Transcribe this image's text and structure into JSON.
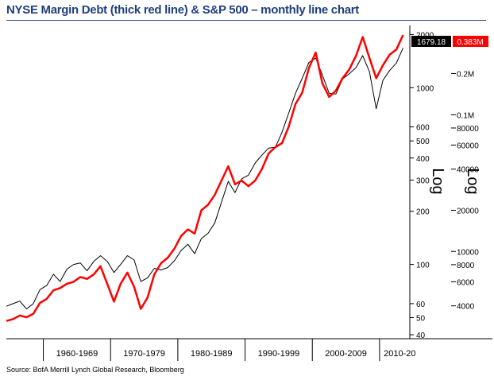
{
  "title": "NYSE Margin Debt (thick red line) & S&P 500 – monthly line chart",
  "source": "Source: BofA Merrill Lynch Global Research, Bloomberg",
  "chart_data": {
    "type": "line",
    "title": "NYSE Margin Debt (thick red line) & S&P 500 – monthly line chart",
    "x_range": [
      1954,
      2014
    ],
    "x_ticks": [
      "1960-1969",
      "1970-1979",
      "1980-1989",
      "1990-1999",
      "2000-2009",
      "2010-20"
    ],
    "x_tick_positions_years": [
      1964.5,
      1974.5,
      1984.5,
      1994.5,
      2004.5,
      2012.5
    ],
    "x_separators_years": [
      1959.5,
      1969.5,
      1979.5,
      1989.5,
      1999.5,
      2009.5
    ],
    "left_axis": {
      "label": "Log",
      "scale": "log",
      "range": [
        38,
        2250
      ],
      "ticks": [
        2000,
        1000,
        600,
        500,
        400,
        300,
        200,
        100,
        60,
        50,
        40
      ],
      "tick_labels": [
        "2000",
        "1000",
        "600",
        "500",
        "400",
        "300",
        "200",
        "100",
        "60",
        "50",
        "40"
      ]
    },
    "right_axis": {
      "label": "Log",
      "scale": "log",
      "range": [
        2300,
        450000
      ],
      "ticks": [
        200000,
        100000,
        80000,
        60000,
        40000,
        20000,
        10000,
        8000,
        6000,
        4000
      ],
      "tick_labels": [
        "0.2M",
        "0.1M",
        "80000",
        "60000",
        "40000",
        "20000",
        "10000",
        "8000",
        "6000",
        "4000"
      ]
    },
    "last_value_labels": [
      {
        "series": "S&P 500",
        "text": "1679.18",
        "color": "#000000"
      },
      {
        "series": "NYSE Margin Debt",
        "text": "0.383M",
        "color": "#ff0000"
      }
    ],
    "series": [
      {
        "name": "S&P 500",
        "axis": "left",
        "color": "#000000",
        "width": 1,
        "points": [
          [
            1954,
            58
          ],
          [
            1955,
            60
          ],
          [
            1956,
            62
          ],
          [
            1957,
            56
          ],
          [
            1958,
            60
          ],
          [
            1959,
            72
          ],
          [
            1960,
            76
          ],
          [
            1961,
            88
          ],
          [
            1962,
            80
          ],
          [
            1963,
            94
          ],
          [
            1964,
            100
          ],
          [
            1965,
            102
          ],
          [
            1966,
            92
          ],
          [
            1967,
            104
          ],
          [
            1968,
            112
          ],
          [
            1969,
            104
          ],
          [
            1970,
            90
          ],
          [
            1971,
            100
          ],
          [
            1972,
            112
          ],
          [
            1973,
            106
          ],
          [
            1974,
            80
          ],
          [
            1975,
            84
          ],
          [
            1976,
            95
          ],
          [
            1977,
            93
          ],
          [
            1978,
            96
          ],
          [
            1979,
            105
          ],
          [
            1980,
            120
          ],
          [
            1981,
            130
          ],
          [
            1982,
            115
          ],
          [
            1983,
            140
          ],
          [
            1984,
            150
          ],
          [
            1985,
            172
          ],
          [
            1986,
            225
          ],
          [
            1987,
            295
          ],
          [
            1988,
            255
          ],
          [
            1989,
            305
          ],
          [
            1990,
            320
          ],
          [
            1991,
            375
          ],
          [
            1992,
            415
          ],
          [
            1993,
            455
          ],
          [
            1994,
            460
          ],
          [
            1995,
            560
          ],
          [
            1996,
            720
          ],
          [
            1997,
            930
          ],
          [
            1998,
            1130
          ],
          [
            1999,
            1390
          ],
          [
            2000,
            1470
          ],
          [
            2001,
            1180
          ],
          [
            2002,
            930
          ],
          [
            2003,
            920
          ],
          [
            2004,
            1120
          ],
          [
            2005,
            1200
          ],
          [
            2006,
            1300
          ],
          [
            2007,
            1520
          ],
          [
            2008,
            1230
          ],
          [
            2009,
            760
          ],
          [
            2010,
            1100
          ],
          [
            2011,
            1250
          ],
          [
            2012,
            1380
          ],
          [
            2013,
            1679.18
          ]
        ]
      },
      {
        "name": "NYSE Margin Debt",
        "axis": "right",
        "color": "#ff0000",
        "width": 2.5,
        "points": [
          [
            1954,
            3100
          ],
          [
            1955,
            3200
          ],
          [
            1956,
            3400
          ],
          [
            1957,
            3300
          ],
          [
            1958,
            3500
          ],
          [
            1959,
            4200
          ],
          [
            1960,
            4500
          ],
          [
            1961,
            5200
          ],
          [
            1962,
            5400
          ],
          [
            1963,
            5800
          ],
          [
            1964,
            6000
          ],
          [
            1965,
            6500
          ],
          [
            1966,
            6300
          ],
          [
            1967,
            6800
          ],
          [
            1968,
            7800
          ],
          [
            1969,
            5800
          ],
          [
            1970,
            4300
          ],
          [
            1971,
            5800
          ],
          [
            1972,
            7000
          ],
          [
            1973,
            5500
          ],
          [
            1974,
            3800
          ],
          [
            1975,
            4600
          ],
          [
            1976,
            6800
          ],
          [
            1977,
            8200
          ],
          [
            1978,
            9000
          ],
          [
            1979,
            10500
          ],
          [
            1980,
            13000
          ],
          [
            1981,
            14500
          ],
          [
            1982,
            13500
          ],
          [
            1983,
            20000
          ],
          [
            1984,
            22000
          ],
          [
            1985,
            26000
          ],
          [
            1986,
            33000
          ],
          [
            1987,
            42000
          ],
          [
            1988,
            31000
          ],
          [
            1989,
            33000
          ],
          [
            1990,
            30000
          ],
          [
            1991,
            33000
          ],
          [
            1992,
            40000
          ],
          [
            1993,
            52000
          ],
          [
            1994,
            58000
          ],
          [
            1995,
            62000
          ],
          [
            1996,
            82000
          ],
          [
            1997,
            120000
          ],
          [
            1998,
            145000
          ],
          [
            1999,
            220000
          ],
          [
            2000,
            285000
          ],
          [
            2001,
            170000
          ],
          [
            2002,
            135000
          ],
          [
            2003,
            150000
          ],
          [
            2004,
            185000
          ],
          [
            2005,
            215000
          ],
          [
            2006,
            270000
          ],
          [
            2007,
            370000
          ],
          [
            2008,
            260000
          ],
          [
            2009,
            185000
          ],
          [
            2010,
            230000
          ],
          [
            2011,
            275000
          ],
          [
            2012,
            300000
          ],
          [
            2013,
            383000
          ]
        ]
      }
    ]
  }
}
